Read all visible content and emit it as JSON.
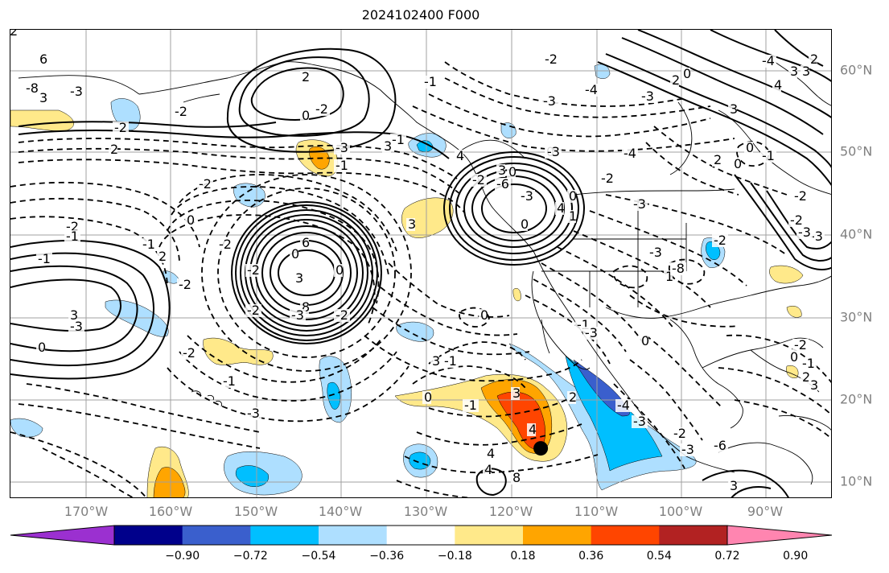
{
  "title": "2024102400 F000",
  "map": {
    "lon_labels": [
      "170°W",
      "160°W",
      "150°W",
      "140°W",
      "130°W",
      "120°W",
      "110°W",
      "100°W",
      "90°W"
    ],
    "lat_labels": [
      "60°N",
      "50°N",
      "40°N",
      "30°N",
      "20°N",
      "10°N"
    ],
    "contour_labels": [
      "3",
      "6",
      "8",
      "-8",
      "6",
      "3",
      "2",
      "2",
      "0",
      "-1",
      "-2",
      "-1",
      "-1",
      "4",
      "3",
      "-2",
      "-3",
      "-4",
      "-3",
      "2",
      "3",
      "0",
      "0",
      "4",
      "3",
      "2",
      "-3",
      "-2",
      "-2",
      "-1",
      "0",
      "-4",
      "3",
      "2",
      "-3",
      "-2",
      "-2",
      "-2",
      "-1",
      "-1",
      "3",
      "-3",
      "0",
      "2",
      "-2",
      "-2",
      "0",
      "0",
      "-3",
      "-2",
      "-2",
      "-2",
      "3",
      "-2",
      "0",
      "-3",
      "0",
      "0",
      "3",
      "4",
      "-3",
      "-4",
      "-2",
      "4",
      "-6",
      "1",
      "-3",
      "-3",
      "1",
      "-8",
      "-1",
      "0",
      "0",
      "3",
      "3",
      "4",
      "4",
      "8",
      "-3",
      "-4",
      "-3",
      "-2",
      "-3",
      "-6",
      "3",
      "-2",
      "-1",
      "2",
      "3",
      "0",
      "-3",
      "-2",
      "-3",
      "-2",
      "0",
      "-1",
      "-2",
      "-1",
      "-3",
      "0",
      "-1",
      "-1",
      "2",
      "0",
      "2",
      "-2",
      "-2",
      "0",
      "0"
    ]
  },
  "colorbar": {
    "ticks": [
      "−0.90",
      "−0.72",
      "−0.54",
      "−0.36",
      "−0.18",
      "0.18",
      "0.36",
      "0.54",
      "0.72",
      "0.90"
    ],
    "colors": [
      "#9b30d0",
      "#00008b",
      "#3a5fcd",
      "#00bfff",
      "#aedfff",
      "#ffffff",
      "#ffe98a",
      "#ffa500",
      "#ff4500",
      "#b22222",
      "#ff85b0"
    ]
  },
  "marker": {
    "lon": -116.5,
    "lat": 14.1
  }
}
